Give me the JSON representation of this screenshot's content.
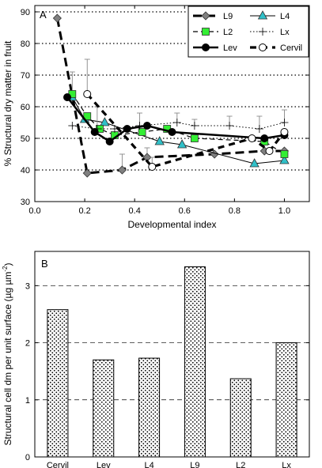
{
  "chart_data": [
    {
      "panel_label": "A",
      "type": "line",
      "xlabel": "Developmental index",
      "ylabel": "% Structural dry matter in fruit",
      "xlim": [
        0.0,
        1.1
      ],
      "ylim": [
        30,
        92
      ],
      "x_ticks": [
        "0.0",
        "0.2",
        "0.4",
        "0.6",
        "0.8",
        "1.0"
      ],
      "y_ticks": [
        "30",
        "40",
        "50",
        "60",
        "70",
        "80",
        "90"
      ],
      "grid": "horizontal dotted",
      "legend_position": "top-right",
      "series": [
        {
          "name": "L9",
          "line": "thick-dashed",
          "marker": "diamond",
          "color": "#808080",
          "x": [
            0.09,
            0.21,
            0.35,
            0.45,
            0.72,
            0.92,
            1.0
          ],
          "y": [
            88,
            39,
            40,
            44,
            45,
            46,
            46
          ],
          "err": [
            0,
            0,
            5,
            3,
            0,
            0,
            0
          ]
        },
        {
          "name": "L4",
          "line": "thin-solid",
          "marker": "triangle",
          "color": "#30c0c8",
          "x": [
            0.15,
            0.2,
            0.28,
            0.5,
            0.59,
            0.88,
            1.0
          ],
          "y": [
            63,
            56,
            55,
            49,
            48,
            42,
            43
          ],
          "err": [
            0,
            0,
            0,
            0,
            0,
            0,
            0
          ]
        },
        {
          "name": "L2",
          "line": "dashed",
          "marker": "square",
          "color": "#33ee33",
          "x": [
            0.15,
            0.21,
            0.26,
            0.32,
            0.43,
            0.53,
            0.64,
            0.92,
            1.0
          ],
          "y": [
            64,
            57,
            53,
            51,
            52,
            53,
            50,
            49,
            45
          ],
          "err": [
            7,
            0,
            0,
            0,
            0,
            0,
            0,
            0,
            0
          ]
        },
        {
          "name": "Lx",
          "line": "dotted",
          "marker": "plus",
          "color": "#000000",
          "x": [
            0.15,
            0.25,
            0.32,
            0.42,
            0.57,
            0.64,
            0.78,
            0.9,
            1.0
          ],
          "y": [
            54,
            53,
            53,
            54,
            55,
            54,
            54,
            53,
            55
          ],
          "err": [
            0,
            7,
            0,
            4,
            3,
            2,
            3,
            4,
            4
          ]
        },
        {
          "name": "Lev",
          "line": "thick-solid",
          "marker": "filled-circle",
          "color": "#000000",
          "x": [
            0.13,
            0.24,
            0.3,
            0.37,
            0.45,
            0.55,
            0.92,
            1.0
          ],
          "y": [
            63,
            52,
            49,
            53,
            54,
            52,
            50,
            51
          ],
          "err": [
            0,
            0,
            0,
            0,
            0,
            0,
            0,
            0
          ]
        },
        {
          "name": "Cervil",
          "line": "heavy-dashed",
          "marker": "open-circle",
          "color": "#000000",
          "x": [
            0.21,
            0.47,
            0.87,
            0.94,
            1.0
          ],
          "y": [
            64,
            41,
            50,
            46,
            52
          ],
          "err": [
            11,
            3,
            0,
            0,
            0
          ]
        }
      ]
    },
    {
      "panel_label": "B",
      "type": "bar",
      "ylabel_main": "Structural cell dm per unit surface (µg µm",
      "ylabel_sup": "-2",
      "ylabel_close": ")",
      "xlabel": "",
      "ylim": [
        0,
        3.6
      ],
      "y_ticks": [
        "0",
        "1",
        "2",
        "3"
      ],
      "grid": "horizontal dashed",
      "categories": [
        "Cervil",
        "Lev",
        "L4",
        "L9",
        "L2",
        "Lx"
      ],
      "values": [
        2.58,
        1.7,
        1.73,
        3.33,
        1.37,
        2.0
      ]
    }
  ]
}
